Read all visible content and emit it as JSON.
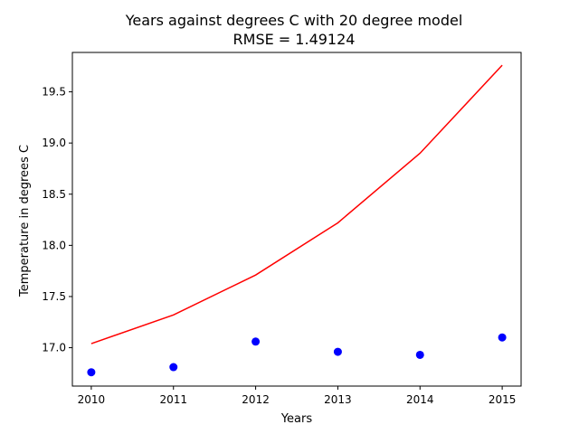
{
  "chart_data": {
    "type": "scatter",
    "title": "Years against degrees C with 20 degree model",
    "subtitle": "RMSE = 1.49124",
    "xlabel": "Years",
    "ylabel": "Temperature in degrees C",
    "xlim": [
      2009.77,
      2015.23
    ],
    "ylim": [
      16.625,
      19.885
    ],
    "xticks": [
      2010,
      2011,
      2012,
      2013,
      2014,
      2015
    ],
    "xtick_labels": [
      "2010",
      "2011",
      "2012",
      "2013",
      "2014",
      "2015"
    ],
    "yticks": [
      17.0,
      17.5,
      18.0,
      18.5,
      19.0,
      19.5
    ],
    "ytick_labels": [
      "17.0",
      "17.5",
      "18.0",
      "18.5",
      "19.0",
      "19.5"
    ],
    "grid": false,
    "series": [
      {
        "kind": "scatter",
        "color": "#0000ff",
        "x": [
          2010,
          2011,
          2012,
          2013,
          2014,
          2015
        ],
        "y": [
          16.76,
          16.81,
          17.06,
          16.96,
          16.93,
          17.1
        ]
      },
      {
        "kind": "line",
        "color": "#ff0000",
        "x": [
          2010,
          2011,
          2012,
          2013,
          2014,
          2015
        ],
        "y": [
          17.04,
          17.32,
          17.71,
          18.22,
          18.9,
          19.76
        ]
      }
    ]
  }
}
